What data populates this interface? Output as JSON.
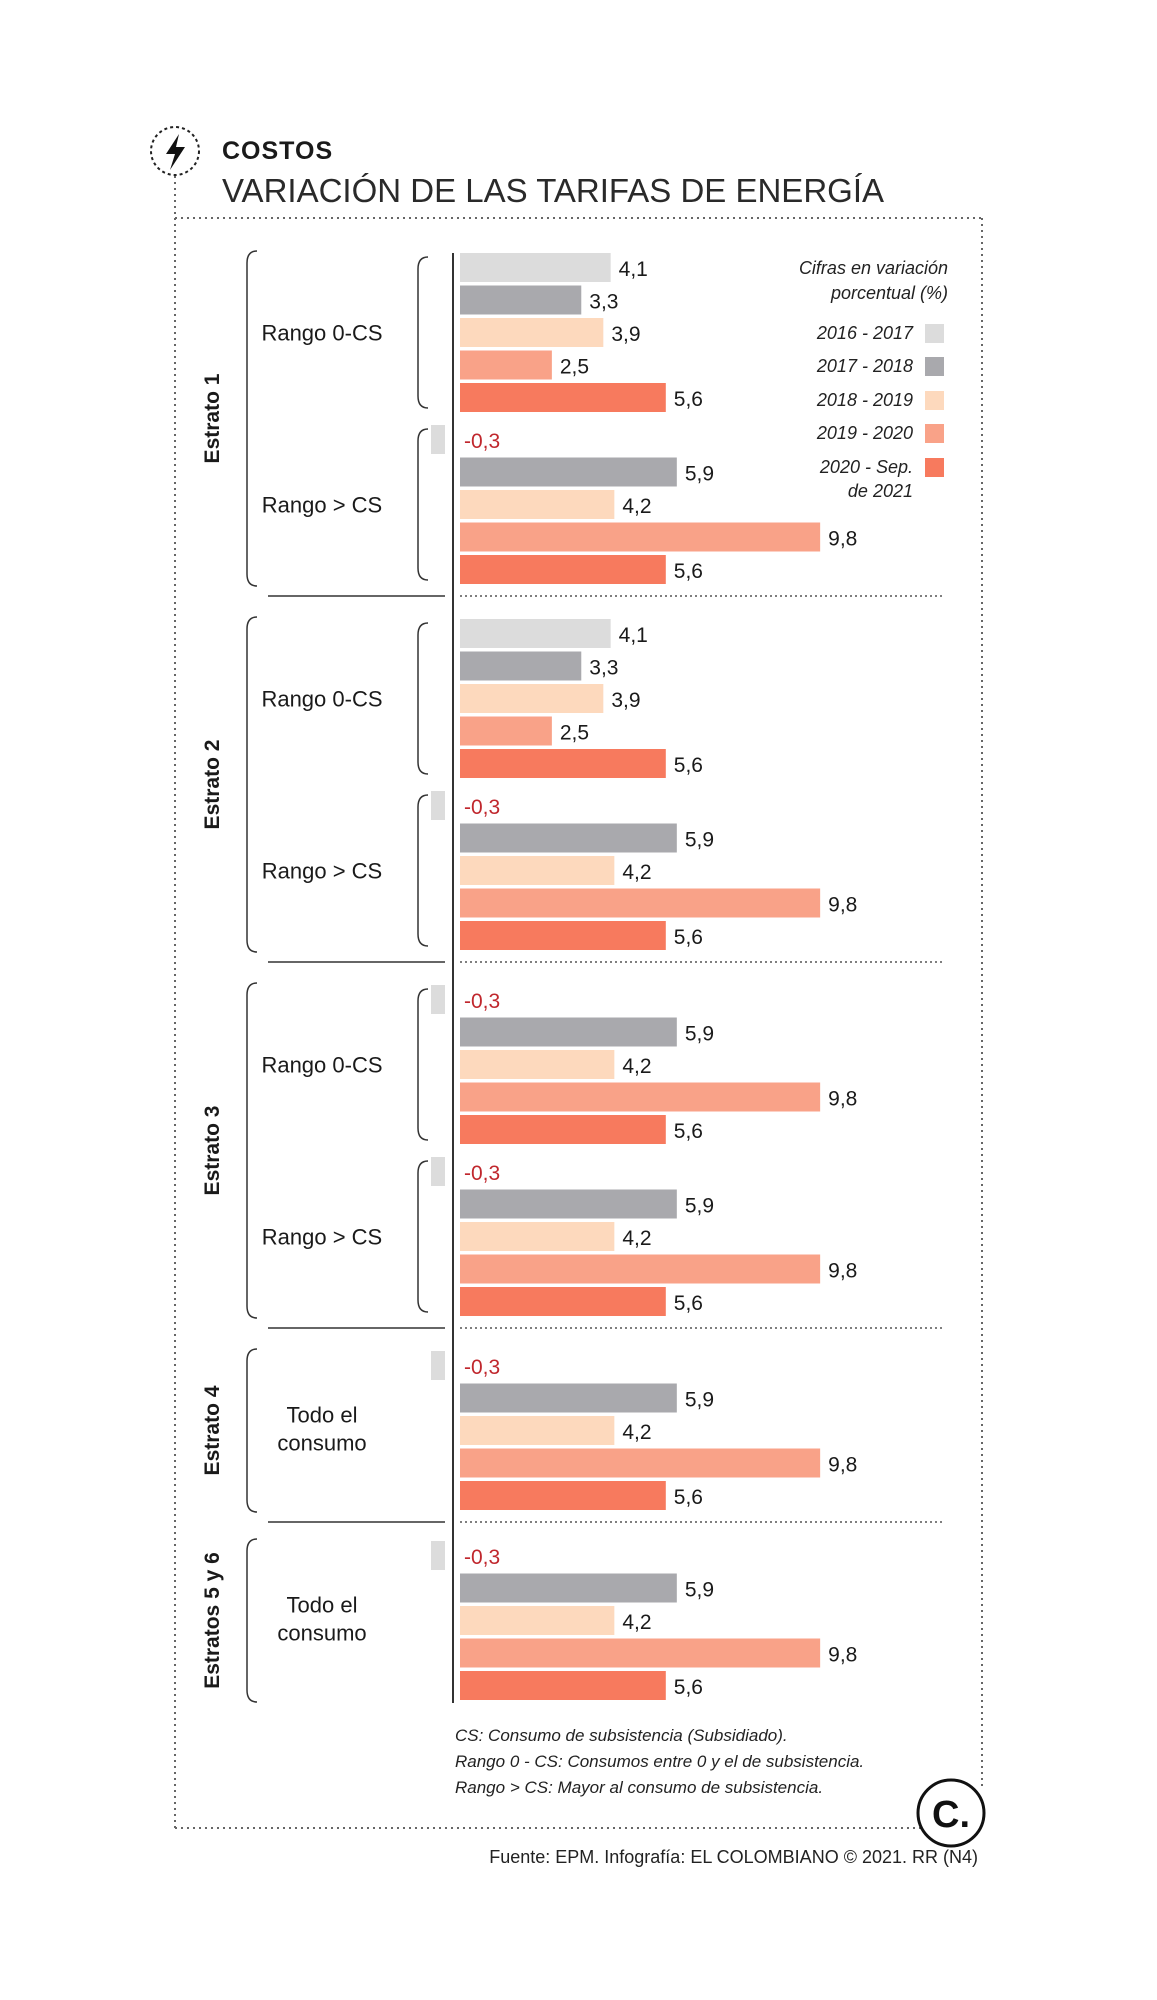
{
  "header": {
    "kicker": "COSTOS",
    "title": "VARIACIÓN DE LAS TARIFAS DE ENERGÍA"
  },
  "legend": {
    "title_line1": "Cifras en variación",
    "title_line2": "porcentual (%)",
    "last_label_line2": "de 2021"
  },
  "notes": [
    "CS: Consumo de subsistencia (Subsidiado).",
    "Rango 0 - CS: Consumos entre 0 y el de subsistencia.",
    "Rango > CS: Mayor al consumo de subsistencia."
  ],
  "source": "Fuente: EPM. Infografía: EL COLOMBIANO © 2021. RR (N4)",
  "logo": {
    "letter": "C."
  },
  "colors": {
    "s2016": "#dcdcdc",
    "s2017": "#a9a9ad",
    "s2018": "#fdd9bd",
    "s2019": "#f9a288",
    "s2020": "#f77a5e",
    "negative_value": "#c0272d",
    "dotted_frame": "#666666"
  },
  "chart_data": {
    "type": "bar",
    "orientation": "horizontal",
    "unit": "%",
    "xlim": [
      -0.3,
      9.8
    ],
    "series_names": [
      "2016 - 2017",
      "2017 - 2018",
      "2018 - 2019",
      "2019 - 2020",
      "2020 - Sep."
    ],
    "groups": [
      {
        "label": "Estrato 1",
        "ranges": [
          {
            "label": "Rango 0-CS",
            "values": [
              4.1,
              3.3,
              3.9,
              2.5,
              5.6
            ],
            "labels": [
              "4,1",
              "3,3",
              "3,9",
              "2,5",
              "5,6"
            ]
          },
          {
            "label": "Rango > CS",
            "values": [
              -0.3,
              5.9,
              4.2,
              9.8,
              5.6
            ],
            "labels": [
              "-0,3",
              "5,9",
              "4,2",
              "9,8",
              "5,6"
            ]
          }
        ]
      },
      {
        "label": "Estrato 2",
        "ranges": [
          {
            "label": "Rango 0-CS",
            "values": [
              4.1,
              3.3,
              3.9,
              2.5,
              5.6
            ],
            "labels": [
              "4,1",
              "3,3",
              "3,9",
              "2,5",
              "5,6"
            ]
          },
          {
            "label": "Rango > CS",
            "values": [
              -0.3,
              5.9,
              4.2,
              9.8,
              5.6
            ],
            "labels": [
              "-0,3",
              "5,9",
              "4,2",
              "9,8",
              "5,6"
            ]
          }
        ]
      },
      {
        "label": "Estrato 3",
        "ranges": [
          {
            "label": "Rango 0-CS",
            "values": [
              -0.3,
              5.9,
              4.2,
              9.8,
              5.6
            ],
            "labels": [
              "-0,3",
              "5,9",
              "4,2",
              "9,8",
              "5,6"
            ]
          },
          {
            "label": "Rango > CS",
            "values": [
              -0.3,
              5.9,
              4.2,
              9.8,
              5.6
            ],
            "labels": [
              "-0,3",
              "5,9",
              "4,2",
              "9,8",
              "5,6"
            ]
          }
        ]
      },
      {
        "label": "Estrato 4",
        "ranges": [
          {
            "label": "Todo el consumo",
            "label_lines": [
              "Todo el",
              "consumo"
            ],
            "values": [
              -0.3,
              5.9,
              4.2,
              9.8,
              5.6
            ],
            "labels": [
              "-0,3",
              "5,9",
              "4,2",
              "9,8",
              "5,6"
            ]
          }
        ]
      },
      {
        "label": "Estratos 5 y 6",
        "ranges": [
          {
            "label": "Todo el consumo",
            "label_lines": [
              "Todo el",
              "consumo"
            ],
            "values": [
              -0.3,
              5.9,
              4.2,
              9.8,
              5.6
            ],
            "labels": [
              "-0,3",
              "5,9",
              "4,2",
              "9,8",
              "5,6"
            ]
          }
        ]
      }
    ]
  }
}
